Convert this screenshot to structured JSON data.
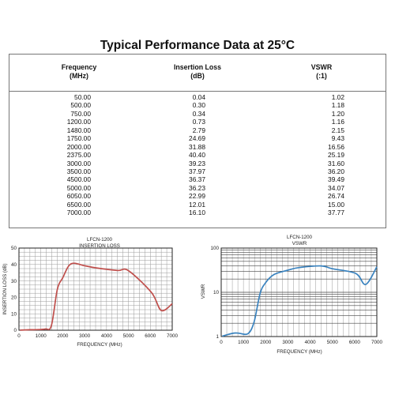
{
  "page": {
    "title": "Typical Performance Data at 25°C"
  },
  "table": {
    "headers": {
      "frequency": [
        "Frequency",
        "(MHz)"
      ],
      "insertion_loss": [
        "Insertion Loss",
        "(dB)"
      ],
      "vswr": [
        "VSWR",
        "(:1)"
      ]
    },
    "frequency": [
      "50.00",
      "500.00",
      "750.00",
      "1200.00",
      "1480.00",
      "1750.00",
      "2000.00",
      "2375.00",
      "3000.00",
      "3500.00",
      "4500.00",
      "5000.00",
      "6050.00",
      "6500.00",
      "7000.00"
    ],
    "insertion_loss": [
      "0.04",
      "0.30",
      "0.34",
      "0.73",
      "2.79",
      "24.69",
      "31.88",
      "40.40",
      "39.23",
      "37.97",
      "36.37",
      "36.23",
      "22.99",
      "12.01",
      "16.10"
    ],
    "vswr": [
      "1.02",
      "1.18",
      "1.20",
      "1.16",
      "2.15",
      "9.43",
      "16.56",
      "25.19",
      "31.60",
      "36.20",
      "39.49",
      "34.07",
      "26.74",
      "15.00",
      "37.77"
    ]
  },
  "chart_data": [
    {
      "type": "line",
      "title": "LFCN-1200",
      "subtitle": "INSERTION LOSS",
      "xlabel": "FREQUENCY (MHz)",
      "ylabel": "INSERTION LOSS (dB)",
      "xlim": [
        0,
        7000
      ],
      "ylim": [
        0,
        50
      ],
      "x_ticks": [
        0,
        1000,
        2000,
        3000,
        4000,
        5000,
        6000,
        7000
      ],
      "y_ticks": [
        0,
        10,
        20,
        30,
        40,
        50
      ],
      "grid": true,
      "color": "#c0504d",
      "series": [
        {
          "x": [
            50,
            500,
            750,
            1200,
            1480,
            1750,
            2000,
            2375,
            3000,
            3500,
            4500,
            5000,
            6050,
            6500,
            7000
          ],
          "y": [
            0.04,
            0.3,
            0.34,
            0.73,
            2.79,
            24.69,
            31.88,
            40.4,
            39.23,
            37.97,
            36.37,
            36.23,
            22.99,
            12.01,
            16.1
          ]
        }
      ]
    },
    {
      "type": "line",
      "title": "LFCN-1200",
      "subtitle": "VSWR",
      "xlabel": "FREQUENCY (MHz)",
      "ylabel": "VSWR",
      "xlim": [
        0,
        7000
      ],
      "ylim": [
        1,
        100
      ],
      "yscale": "log",
      "x_ticks": [
        0,
        1000,
        2000,
        3000,
        4000,
        5000,
        6000,
        7000
      ],
      "y_ticks": [
        1,
        10,
        100
      ],
      "grid": true,
      "color": "#3a83bf",
      "series": [
        {
          "x": [
            50,
            500,
            750,
            1200,
            1480,
            1750,
            2000,
            2375,
            3000,
            3500,
            4500,
            5000,
            6050,
            6500,
            7000
          ],
          "y": [
            1.02,
            1.18,
            1.2,
            1.16,
            2.15,
            9.43,
            16.56,
            25.19,
            31.6,
            36.2,
            39.49,
            34.07,
            26.74,
            15.0,
            37.77
          ]
        }
      ]
    }
  ]
}
